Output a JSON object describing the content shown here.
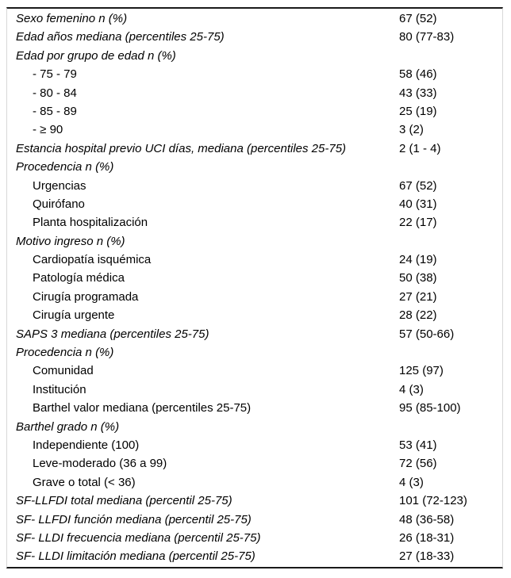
{
  "table": {
    "rows": [
      {
        "label": "Sexo femenino n (%)",
        "value": "67 (52)",
        "variant": "header"
      },
      {
        "label": "Edad años mediana (percentiles 25-75)",
        "value": "80 (77-83)",
        "variant": "header"
      },
      {
        "label": "Edad por grupo de edad n (%)",
        "value": "",
        "variant": "header"
      },
      {
        "label": "- 75 - 79",
        "value": "58 (46)",
        "variant": "sub"
      },
      {
        "label": "- 80 - 84",
        "value": "43 (33)",
        "variant": "sub"
      },
      {
        "label": "- 85 - 89",
        "value": "25 (19)",
        "variant": "sub"
      },
      {
        "label": "- ≥ 90",
        "value": "3 (2)",
        "variant": "sub"
      },
      {
        "label": "Estancia hospital previo UCI días, mediana (percentiles 25-75)",
        "value": "2 (1 - 4)",
        "variant": "header"
      },
      {
        "label": "Procedencia n (%)",
        "value": "",
        "variant": "header"
      },
      {
        "label": "Urgencias",
        "value": "67 (52)",
        "variant": "sub"
      },
      {
        "label": "Quirófano",
        "value": "40 (31)",
        "variant": "sub"
      },
      {
        "label": "Planta hospitalización",
        "value": "22 (17)",
        "variant": "sub"
      },
      {
        "label": "Motivo ingreso n (%)",
        "value": "",
        "variant": "header"
      },
      {
        "label": "Cardiopatía isquémica",
        "value": "24 (19)",
        "variant": "sub"
      },
      {
        "label": "Patología médica",
        "value": "50 (38)",
        "variant": "sub"
      },
      {
        "label": "Cirugía programada",
        "value": "27 (21)",
        "variant": "sub"
      },
      {
        "label": "Cirugía urgente",
        "value": "28 (22)",
        "variant": "sub"
      },
      {
        "label": "SAPS 3 mediana (percentiles 25-75)",
        "value": "57 (50-66)",
        "variant": "header"
      },
      {
        "label": "Procedencia n (%)",
        "value": "",
        "variant": "header"
      },
      {
        "label": "Comunidad",
        "value": "125 (97)",
        "variant": "sub"
      },
      {
        "label": "Institución",
        "value": "4 (3)",
        "variant": "sub"
      },
      {
        "label": "Barthel valor mediana (percentiles 25-75)",
        "value": "95 (85-100)",
        "variant": "sub"
      },
      {
        "label": "Barthel grado n (%)",
        "value": "",
        "variant": "header"
      },
      {
        "label": "Independiente (100)",
        "value": "53 (41)",
        "variant": "sub"
      },
      {
        "label": "Leve-moderado (36 a 99)",
        "value": "72 (56)",
        "variant": "sub"
      },
      {
        "label": "Grave o total (< 36)",
        "value": "4 (3)",
        "variant": "sub"
      },
      {
        "label": "SF-LLFDI total mediana (percentil 25-75)",
        "value": "101 (72-123)",
        "variant": "header"
      },
      {
        "label": "SF- LLFDI función mediana (percentil 25-75)",
        "value": "48 (36-58)",
        "variant": "header"
      },
      {
        "label": "SF- LLDI frecuencia mediana (percentil 25-75)",
        "value": "26 (18-31)",
        "variant": "header"
      },
      {
        "label": "SF- LLDI limitación mediana (percentil 25-75)",
        "value": "27 (18-33)",
        "variant": "header"
      }
    ]
  },
  "colors": {
    "text": "#000000",
    "rule": "#1a1a1a",
    "side_border": "#d8d8d8",
    "background": "#ffffff"
  }
}
